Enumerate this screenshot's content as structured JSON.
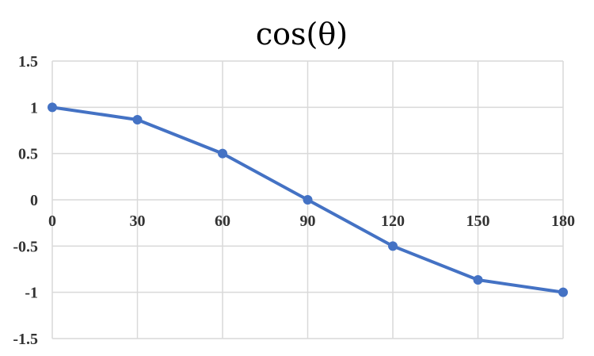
{
  "chart_data": {
    "type": "line",
    "title": "cos(θ)",
    "xlabel": "",
    "ylabel": "",
    "x": [
      0,
      30,
      60,
      90,
      120,
      150,
      180
    ],
    "xticks": [
      "0",
      "30",
      "60",
      "90",
      "120",
      "150",
      "180"
    ],
    "yticks": [
      "1.5",
      "1",
      "0.5",
      "0",
      "-0.5",
      "-1",
      "-1.5"
    ],
    "ylim": [
      -1.5,
      1.5
    ],
    "xlim": [
      0,
      180
    ],
    "grid": true,
    "legend": "none",
    "series": [
      {
        "color": "#4472c4",
        "values": [
          1,
          0.866,
          0.5,
          0,
          -0.5,
          -0.866,
          -1
        ]
      }
    ]
  }
}
